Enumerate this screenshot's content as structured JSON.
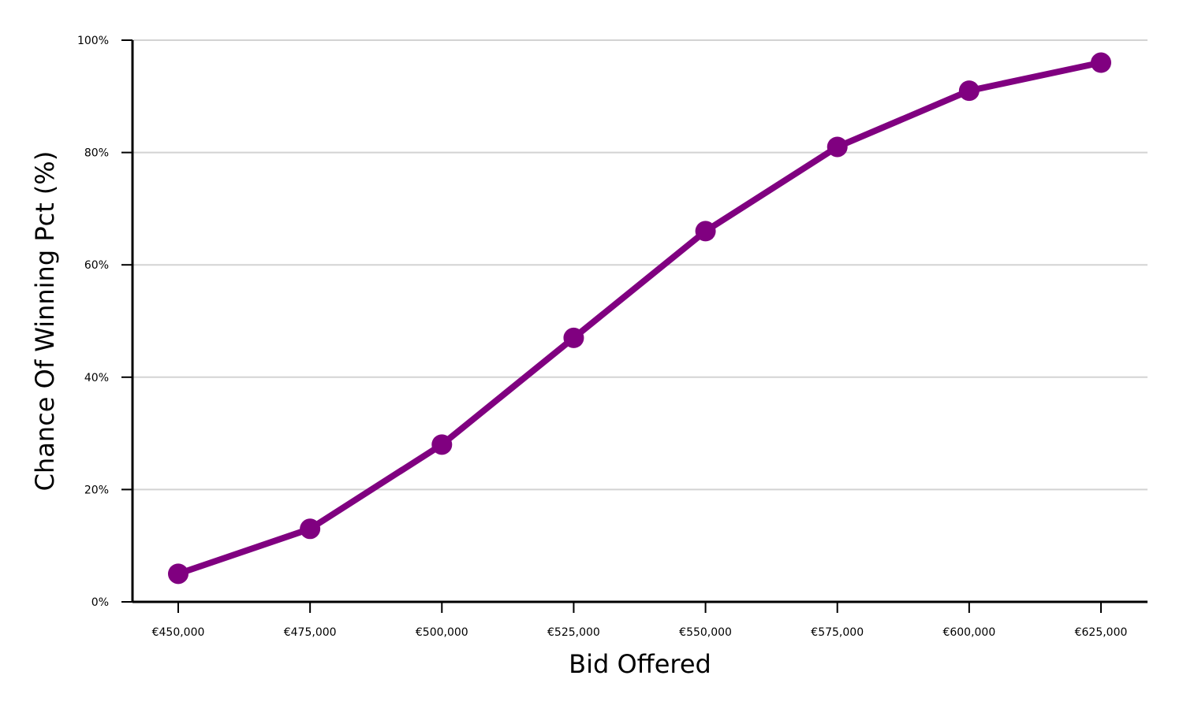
{
  "chart_data": {
    "type": "line",
    "title": "",
    "xlabel": "Bid Offered",
    "ylabel": "Chance Of Winning Pct (%)",
    "x": [
      450000,
      475000,
      500000,
      525000,
      550000,
      575000,
      600000,
      625000
    ],
    "x_tick_labels": [
      "€450,000",
      "€475,000",
      "€500,000",
      "€525,000",
      "€550,000",
      "€575,000",
      "€600,000",
      "€625,000"
    ],
    "series": [
      {
        "values": [
          5,
          13,
          28,
          47,
          66,
          81,
          91,
          96
        ]
      }
    ],
    "ylim": [
      0,
      100
    ],
    "y_ticks": [
      0,
      20,
      40,
      60,
      80,
      100
    ],
    "y_tick_labels": [
      "0%",
      "20%",
      "40%",
      "60%",
      "80%",
      "100%"
    ],
    "grid": "horizontal",
    "colors": {
      "series": "#800080",
      "grid": "#d3d3d3",
      "axis": "#000000"
    }
  }
}
